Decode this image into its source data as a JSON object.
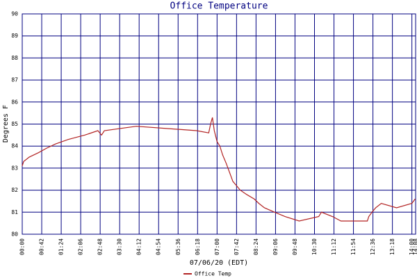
{
  "chart_data": {
    "type": "line",
    "title": "Office Temperature",
    "x_label": "07/06/20 (EDT)",
    "y_label": "Degrees F",
    "xlim": [
      "00:00",
      "14:08"
    ],
    "xticks": [
      "00:00",
      "00:42",
      "01:24",
      "02:06",
      "02:48",
      "03:30",
      "04:12",
      "04:54",
      "05:36",
      "06:18",
      "07:00",
      "07:42",
      "08:24",
      "09:06",
      "09:48",
      "10:30",
      "11:12",
      "11:54",
      "12:36",
      "13:18",
      "14:00",
      "14:08"
    ],
    "ylim": [
      80,
      90
    ],
    "yticks": [
      80,
      81,
      82,
      83,
      84,
      85,
      86,
      87,
      88,
      89,
      90
    ],
    "grid": true,
    "grid_color": "#000080",
    "legend": "bottom",
    "x": [
      "00:00",
      "00:03",
      "00:15",
      "00:35",
      "00:52",
      "01:12",
      "01:39",
      "02:15",
      "02:43",
      "02:51",
      "02:57",
      "04:06",
      "06:16",
      "06:42",
      "06:46",
      "06:50",
      "06:54",
      "07:00",
      "07:06",
      "07:12",
      "07:20",
      "07:27",
      "07:34",
      "07:42",
      "07:50",
      "08:04",
      "08:20",
      "08:30",
      "08:42",
      "09:04",
      "09:27",
      "09:57",
      "10:39",
      "10:45",
      "11:09",
      "11:27",
      "12:24",
      "12:27",
      "12:34",
      "12:42",
      "12:54",
      "13:27",
      "14:00",
      "14:07"
    ],
    "series": [
      {
        "name": "Office Temp",
        "color": "#b22222",
        "values": [
          83.1,
          83.3,
          83.5,
          83.7,
          83.9,
          84.1,
          84.3,
          84.5,
          84.7,
          84.5,
          84.7,
          84.9,
          84.7,
          84.6,
          85.0,
          85.3,
          84.7,
          84.2,
          84.0,
          83.6,
          83.2,
          82.8,
          82.4,
          82.2,
          82.0,
          81.8,
          81.6,
          81.4,
          81.2,
          81.0,
          80.8,
          80.6,
          80.8,
          81.0,
          80.8,
          80.6,
          80.6,
          80.8,
          81.0,
          81.2,
          81.4,
          81.2,
          81.4,
          81.6
        ]
      }
    ]
  }
}
